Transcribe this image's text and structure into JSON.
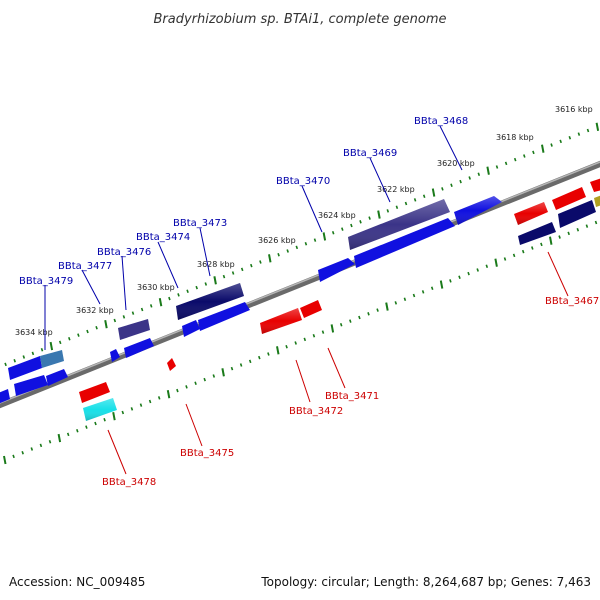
{
  "title": "Bradyrhizobium sp. BTAi1, complete genome",
  "footer": {
    "accession": "Accession: NC_009485",
    "summary": "Topology: circular; Length: 8,264,687 bp; Genes: 7,463"
  },
  "kbp_labels": [
    "3616 kbp",
    "3618 kbp",
    "3620 kbp",
    "3622 kbp",
    "3624 kbp",
    "3626 kbp",
    "3628 kbp",
    "3630 kbp",
    "3632 kbp",
    "3634 kbp"
  ],
  "gene_labels": {
    "forward": [
      "BBta_3468",
      "BBta_3469",
      "BBta_3470",
      "BBta_3473",
      "BBta_3474",
      "BBta_3476",
      "BBta_3477",
      "BBta_3479"
    ],
    "reverse": [
      "BBta_3467",
      "BBta_3471",
      "BBta_3472",
      "BBta_3475",
      "BBta_3478"
    ]
  },
  "colors": {
    "forward_gene": "#1010e0",
    "dark_gene": "#0a0a6a",
    "purple_gene": "#3b3488",
    "steel_gene": "#3a78b0",
    "reverse_gene": "#e80000",
    "cyan_gene": "#18e0e8",
    "olive_gene": "#b0a020",
    "backbone": "#8a8a8a",
    "tick": "#1a7a1a",
    "label_blue": "#0000aa",
    "label_red": "#cc0000"
  }
}
